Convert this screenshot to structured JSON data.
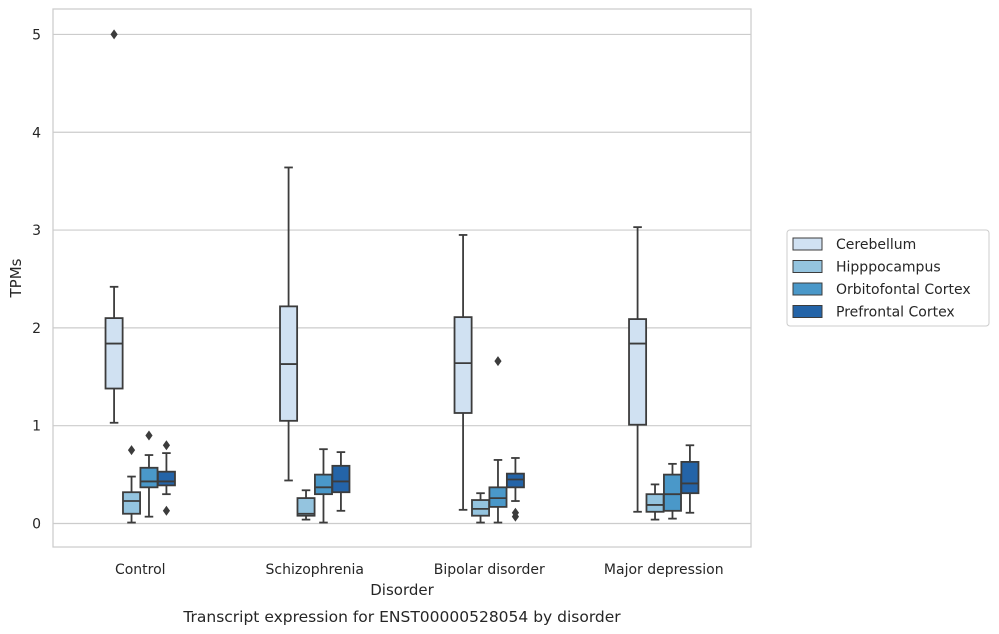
{
  "chart_data": {
    "type": "box",
    "caption": "Transcript expression for ENST00000528054 by disorder",
    "xlabel": "Disorder",
    "ylabel": "TPMs",
    "ylim": [
      -0.24,
      5.26
    ],
    "yticks": [
      0,
      1,
      2,
      3,
      4,
      5
    ],
    "grid": true,
    "legend_position": "right",
    "categories": [
      "Control",
      "Schizophrenia",
      "Bipolar disorder",
      "Major depression"
    ],
    "series": [
      {
        "name": "Cerebellum",
        "color": "#d0e1f2",
        "boxes": [
          {
            "whisker_low": 1.03,
            "q1": 1.38,
            "median": 1.84,
            "q3": 2.1,
            "whisker_high": 2.42,
            "outliers": [
              5.0
            ]
          },
          {
            "whisker_low": 0.44,
            "q1": 1.05,
            "median": 1.63,
            "q3": 2.22,
            "whisker_high": 3.64,
            "outliers": []
          },
          {
            "whisker_low": 0.14,
            "q1": 1.13,
            "median": 1.64,
            "q3": 2.11,
            "whisker_high": 2.95,
            "outliers": []
          },
          {
            "whisker_low": 0.12,
            "q1": 1.01,
            "median": 1.84,
            "q3": 2.09,
            "whisker_high": 3.03,
            "outliers": []
          }
        ]
      },
      {
        "name": "Hipppocampus",
        "color": "#94c4df",
        "boxes": [
          {
            "whisker_low": 0.01,
            "q1": 0.1,
            "median": 0.23,
            "q3": 0.32,
            "whisker_high": 0.48,
            "outliers": [
              0.75
            ]
          },
          {
            "whisker_low": 0.04,
            "q1": 0.08,
            "median": 0.1,
            "q3": 0.26,
            "whisker_high": 0.34,
            "outliers": []
          },
          {
            "whisker_low": 0.01,
            "q1": 0.08,
            "median": 0.15,
            "q3": 0.24,
            "whisker_high": 0.31,
            "outliers": []
          },
          {
            "whisker_low": 0.04,
            "q1": 0.12,
            "median": 0.19,
            "q3": 0.3,
            "whisker_high": 0.4,
            "outliers": []
          }
        ]
      },
      {
        "name": "Orbitofontal Cortex",
        "color": "#4a98c9",
        "boxes": [
          {
            "whisker_low": 0.07,
            "q1": 0.37,
            "median": 0.43,
            "q3": 0.57,
            "whisker_high": 0.7,
            "outliers": [
              0.9
            ]
          },
          {
            "whisker_low": 0.01,
            "q1": 0.3,
            "median": 0.37,
            "q3": 0.5,
            "whisker_high": 0.76,
            "outliers": []
          },
          {
            "whisker_low": 0.01,
            "q1": 0.17,
            "median": 0.26,
            "q3": 0.37,
            "whisker_high": 0.65,
            "outliers": [
              1.66
            ]
          },
          {
            "whisker_low": 0.05,
            "q1": 0.13,
            "median": 0.3,
            "q3": 0.5,
            "whisker_high": 0.61,
            "outliers": []
          }
        ]
      },
      {
        "name": "Prefrontal Cortex",
        "color": "#2464a8",
        "boxes": [
          {
            "whisker_low": 0.3,
            "q1": 0.39,
            "median": 0.43,
            "q3": 0.53,
            "whisker_high": 0.72,
            "outliers": [
              0.8,
              0.13
            ]
          },
          {
            "whisker_low": 0.13,
            "q1": 0.32,
            "median": 0.43,
            "q3": 0.59,
            "whisker_high": 0.73,
            "outliers": []
          },
          {
            "whisker_low": 0.23,
            "q1": 0.37,
            "median": 0.45,
            "q3": 0.51,
            "whisker_high": 0.67,
            "outliers": [
              0.11,
              0.07
            ]
          },
          {
            "whisker_low": 0.11,
            "q1": 0.31,
            "median": 0.41,
            "q3": 0.63,
            "whisker_high": 0.8,
            "outliers": []
          }
        ]
      }
    ]
  }
}
